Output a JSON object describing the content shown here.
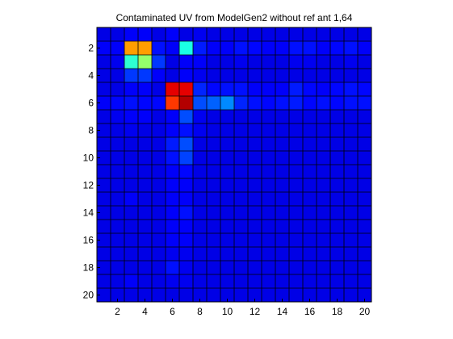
{
  "chart_data": {
    "type": "heatmap",
    "title": "Contaminated UV from ModelGen2 without ref ant 1,64",
    "xlabel": "",
    "ylabel": "",
    "x_categories": [
      1,
      2,
      3,
      4,
      5,
      6,
      7,
      8,
      9,
      10,
      11,
      12,
      13,
      14,
      15,
      16,
      17,
      18,
      19,
      20
    ],
    "y_categories": [
      1,
      2,
      3,
      4,
      5,
      6,
      7,
      8,
      9,
      10,
      11,
      12,
      13,
      14,
      15,
      16,
      17,
      18,
      19,
      20
    ],
    "x_ticks": [
      2,
      4,
      6,
      8,
      10,
      12,
      14,
      16,
      18,
      20
    ],
    "y_ticks": [
      2,
      4,
      6,
      8,
      10,
      12,
      14,
      16,
      18,
      20
    ],
    "xlim": [
      0.5,
      20.5
    ],
    "ylim": [
      0.5,
      20.5
    ],
    "y_direction": "reversed",
    "colormap": "jet",
    "clim": [
      0,
      1
    ],
    "grid": true,
    "values": [
      [
        0.1,
        0.1,
        0.12,
        0.12,
        0.1,
        0.12,
        0.1,
        0.11,
        0.1,
        0.1,
        0.1,
        0.1,
        0.1,
        0.1,
        0.1,
        0.1,
        0.1,
        0.1,
        0.1,
        0.1
      ],
      [
        0.12,
        0.12,
        0.72,
        0.72,
        0.14,
        0.12,
        0.4,
        0.15,
        0.12,
        0.12,
        0.14,
        0.13,
        0.12,
        0.12,
        0.14,
        0.14,
        0.12,
        0.13,
        0.14,
        0.12
      ],
      [
        0.1,
        0.11,
        0.42,
        0.52,
        0.18,
        0.1,
        0.12,
        0.12,
        0.1,
        0.1,
        0.11,
        0.1,
        0.1,
        0.1,
        0.11,
        0.11,
        0.1,
        0.1,
        0.11,
        0.1
      ],
      [
        0.1,
        0.1,
        0.18,
        0.18,
        0.12,
        0.1,
        0.12,
        0.11,
        0.1,
        0.1,
        0.1,
        0.1,
        0.1,
        0.1,
        0.1,
        0.1,
        0.1,
        0.1,
        0.1,
        0.1
      ],
      [
        0.1,
        0.1,
        0.12,
        0.12,
        0.1,
        0.9,
        0.9,
        0.16,
        0.13,
        0.14,
        0.14,
        0.12,
        0.12,
        0.12,
        0.15,
        0.13,
        0.12,
        0.13,
        0.14,
        0.13
      ],
      [
        0.12,
        0.13,
        0.14,
        0.13,
        0.13,
        0.82,
        0.95,
        0.2,
        0.22,
        0.26,
        0.16,
        0.14,
        0.13,
        0.14,
        0.15,
        0.13,
        0.14,
        0.13,
        0.14,
        0.14
      ],
      [
        0.1,
        0.11,
        0.12,
        0.12,
        0.1,
        0.12,
        0.2,
        0.11,
        0.1,
        0.1,
        0.1,
        0.1,
        0.1,
        0.1,
        0.1,
        0.1,
        0.1,
        0.1,
        0.1,
        0.1
      ],
      [
        0.1,
        0.1,
        0.11,
        0.1,
        0.1,
        0.12,
        0.14,
        0.11,
        0.1,
        0.1,
        0.1,
        0.1,
        0.1,
        0.1,
        0.1,
        0.1,
        0.1,
        0.1,
        0.1,
        0.1
      ],
      [
        0.1,
        0.1,
        0.1,
        0.1,
        0.1,
        0.15,
        0.2,
        0.1,
        0.1,
        0.1,
        0.1,
        0.1,
        0.1,
        0.1,
        0.1,
        0.1,
        0.1,
        0.1,
        0.1,
        0.1
      ],
      [
        0.1,
        0.1,
        0.1,
        0.1,
        0.1,
        0.14,
        0.19,
        0.1,
        0.1,
        0.1,
        0.1,
        0.1,
        0.1,
        0.1,
        0.1,
        0.1,
        0.1,
        0.1,
        0.1,
        0.1
      ],
      [
        0.1,
        0.1,
        0.1,
        0.1,
        0.1,
        0.12,
        0.13,
        0.1,
        0.1,
        0.1,
        0.1,
        0.1,
        0.1,
        0.1,
        0.1,
        0.1,
        0.1,
        0.1,
        0.1,
        0.1
      ],
      [
        0.1,
        0.1,
        0.1,
        0.1,
        0.1,
        0.12,
        0.12,
        0.1,
        0.1,
        0.1,
        0.1,
        0.1,
        0.1,
        0.1,
        0.1,
        0.1,
        0.1,
        0.1,
        0.1,
        0.1
      ],
      [
        0.1,
        0.1,
        0.12,
        0.1,
        0.1,
        0.12,
        0.12,
        0.1,
        0.1,
        0.1,
        0.1,
        0.1,
        0.1,
        0.1,
        0.1,
        0.1,
        0.1,
        0.1,
        0.1,
        0.1
      ],
      [
        0.1,
        0.1,
        0.1,
        0.1,
        0.1,
        0.12,
        0.14,
        0.1,
        0.1,
        0.1,
        0.1,
        0.1,
        0.1,
        0.1,
        0.1,
        0.1,
        0.1,
        0.1,
        0.1,
        0.1
      ],
      [
        0.1,
        0.1,
        0.1,
        0.1,
        0.1,
        0.12,
        0.12,
        0.1,
        0.1,
        0.1,
        0.1,
        0.1,
        0.1,
        0.1,
        0.1,
        0.1,
        0.1,
        0.1,
        0.1,
        0.1
      ],
      [
        0.1,
        0.1,
        0.1,
        0.1,
        0.1,
        0.12,
        0.12,
        0.1,
        0.1,
        0.1,
        0.1,
        0.1,
        0.1,
        0.1,
        0.1,
        0.1,
        0.1,
        0.1,
        0.1,
        0.1
      ],
      [
        0.1,
        0.1,
        0.1,
        0.1,
        0.1,
        0.11,
        0.11,
        0.1,
        0.1,
        0.1,
        0.1,
        0.1,
        0.1,
        0.1,
        0.1,
        0.1,
        0.1,
        0.1,
        0.1,
        0.1
      ],
      [
        0.1,
        0.1,
        0.1,
        0.1,
        0.1,
        0.14,
        0.11,
        0.1,
        0.1,
        0.1,
        0.1,
        0.1,
        0.1,
        0.1,
        0.1,
        0.1,
        0.1,
        0.1,
        0.1,
        0.1
      ],
      [
        0.1,
        0.1,
        0.12,
        0.1,
        0.1,
        0.11,
        0.11,
        0.1,
        0.1,
        0.1,
        0.1,
        0.1,
        0.1,
        0.1,
        0.1,
        0.1,
        0.1,
        0.1,
        0.1,
        0.1
      ],
      [
        0.1,
        0.1,
        0.1,
        0.1,
        0.1,
        0.1,
        0.1,
        0.1,
        0.1,
        0.1,
        0.1,
        0.1,
        0.1,
        0.1,
        0.1,
        0.1,
        0.1,
        0.1,
        0.1,
        0.1
      ]
    ]
  }
}
